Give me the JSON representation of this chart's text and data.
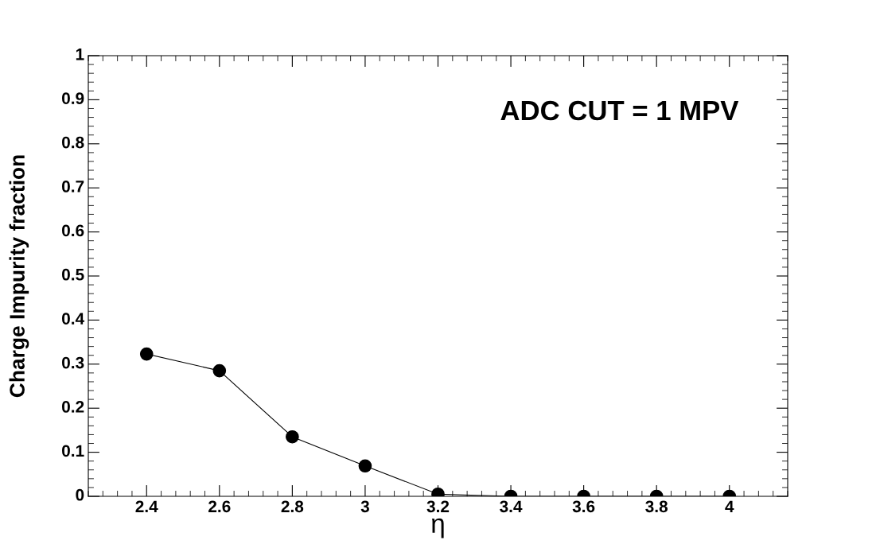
{
  "chart_data": {
    "type": "line",
    "xlabel": "η",
    "ylabel": "Charge Impurity fraction",
    "annotations": [
      "ADC CUT = 1 MPV"
    ],
    "x": [
      2.4,
      2.6,
      2.8,
      3.0,
      3.2,
      3.4,
      3.6,
      3.8,
      4.0
    ],
    "series": [
      {
        "color": "#000000",
        "values": [
          0.323,
          0.285,
          0.135,
          0.069,
          0.005,
          0.0,
          0.0,
          0.0,
          0.0
        ]
      }
    ],
    "xlim": [
      2.24,
      4.16
    ],
    "xticks": [
      2.4,
      2.6,
      2.8,
      3,
      3.2,
      3.4,
      3.6,
      3.8,
      4
    ],
    "ylim": [
      0,
      1
    ],
    "yticks": [
      0,
      0.1,
      0.2,
      0.3,
      0.4,
      0.5,
      0.6,
      0.7,
      0.8,
      0.9,
      1
    ],
    "grid": false,
    "legend": false,
    "marker": "circle",
    "line_style": "solid"
  }
}
